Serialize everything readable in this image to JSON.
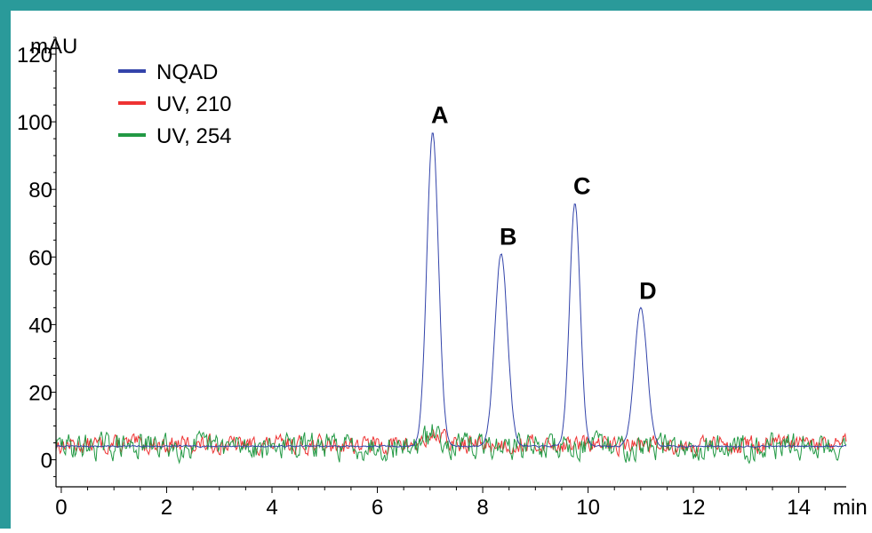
{
  "colors": {
    "frame": "#2a9a9a",
    "axis": "#000000",
    "nqad": "#3344aa",
    "uv210": "#ee3333",
    "uv254": "#229944",
    "text": "#000000"
  },
  "chart_data": {
    "type": "line",
    "ylabel": "mAU",
    "xlabel": "min",
    "xlim": [
      -0.1,
      14.9
    ],
    "ylim": [
      -8,
      125
    ],
    "xticks": [
      0,
      2,
      4,
      6,
      8,
      10,
      12,
      14
    ],
    "yticks": [
      0,
      20,
      40,
      60,
      80,
      100,
      120
    ],
    "x_minor_step": 0.5,
    "y_minor_step": 5,
    "legend": [
      {
        "label": "NQAD",
        "series": "nqad"
      },
      {
        "label": "UV, 210",
        "series": "uv210"
      },
      {
        "label": "UV, 254",
        "series": "uv254"
      }
    ],
    "legend_position": "top-left",
    "series": [
      {
        "name": "NQAD",
        "key": "nqad",
        "baseline": 4,
        "peaks": [
          {
            "label": "A",
            "x": 7.05,
            "y": 97,
            "sigma": 0.11
          },
          {
            "label": "B",
            "x": 8.35,
            "y": 61,
            "sigma": 0.12
          },
          {
            "label": "C",
            "x": 9.75,
            "y": 76,
            "sigma": 0.1
          },
          {
            "label": "D",
            "x": 11.0,
            "y": 45,
            "sigma": 0.12
          }
        ],
        "noise_amplitude": 0.2
      },
      {
        "name": "UV, 210",
        "key": "uv210",
        "baseline": 4.5,
        "noise_amplitude": 2.2,
        "peaks": [
          {
            "x": 7.1,
            "y": 3,
            "sigma": 0.15
          }
        ]
      },
      {
        "name": "UV, 254",
        "key": "uv254",
        "baseline": 4,
        "noise_amplitude": 3.2,
        "peaks": [
          {
            "x": 7.1,
            "y": 4,
            "sigma": 0.15
          }
        ]
      }
    ],
    "peak_labels": [
      "A",
      "B",
      "C",
      "D"
    ]
  }
}
